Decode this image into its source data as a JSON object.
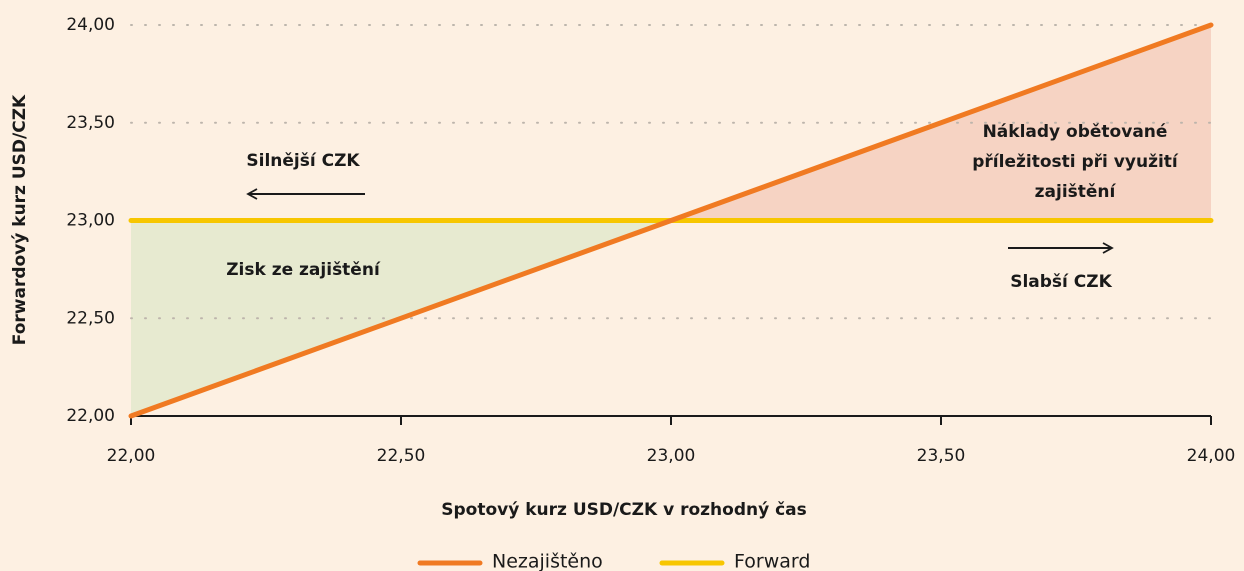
{
  "chart_data": {
    "type": "line",
    "x_label": "Spotový kurz USD/CZK v rozhodný čas",
    "y_label": "Forwardový kurz USD/CZK",
    "x": [
      22,
      24
    ],
    "series": [
      {
        "name": "Nezajištěno",
        "color": "#f07a22",
        "values": [
          22,
          24
        ]
      },
      {
        "name": "Forward",
        "color": "#f7c600",
        "values": [
          23,
          23
        ]
      }
    ],
    "xlim": [
      22,
      24
    ],
    "ylim": [
      22,
      24
    ],
    "xticks": [
      {
        "value": 22,
        "label": "22,00"
      },
      {
        "value": 22.5,
        "label": "22,50"
      },
      {
        "value": 23,
        "label": "23,00"
      },
      {
        "value": 23.5,
        "label": "23,50"
      },
      {
        "value": 24,
        "label": "24,00"
      }
    ],
    "yticks": [
      {
        "value": 22,
        "label": "22,00"
      },
      {
        "value": 22.5,
        "label": "22,50"
      },
      {
        "value": 23,
        "label": "23,00"
      },
      {
        "value": 23.5,
        "label": "23,50"
      },
      {
        "value": 24,
        "label": "24,00"
      }
    ],
    "grid": true,
    "legend": "bottom",
    "annotations": [
      {
        "text": [
          "Silnější CZK"
        ]
      },
      {
        "text": [
          "Zisk ze zajištění"
        ]
      },
      {
        "text": [
          "Náklady obětované",
          "příležitosti při využití",
          "zajištění"
        ]
      },
      {
        "text": [
          "Slabší CZK"
        ]
      }
    ]
  }
}
